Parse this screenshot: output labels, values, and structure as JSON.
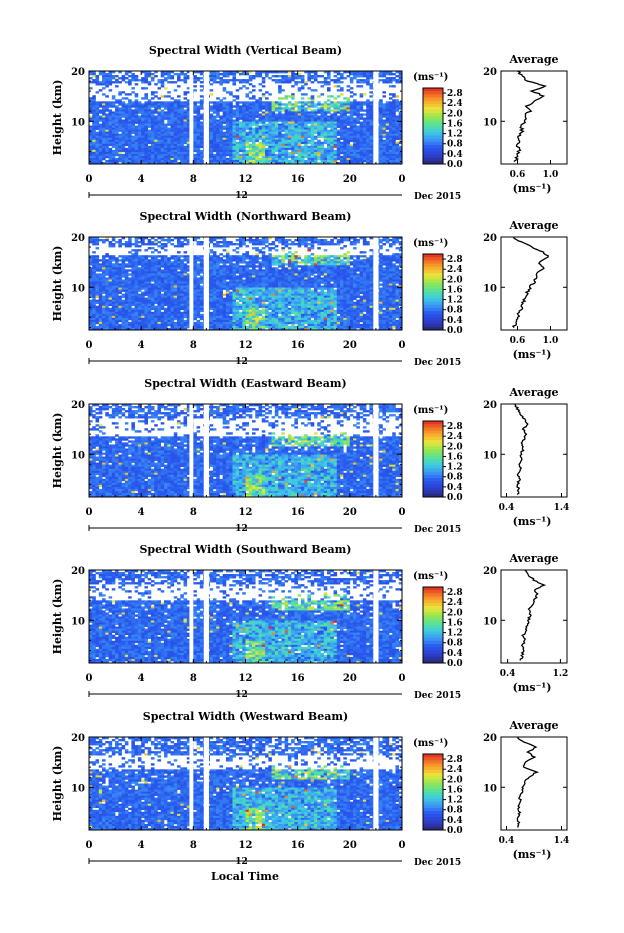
{
  "figure": {
    "xlabel": "Local Time",
    "date_label": "Dec 2015",
    "date_tick": "12",
    "ylabel": "Height (km)",
    "cbar_unit": "(ms⁻¹)",
    "avg_title": "Average",
    "avg_xlabel": "(ms⁻¹)"
  },
  "chart_data": [
    {
      "type": "heatmap",
      "title": "Spectral Width (Vertical Beam)",
      "x_ticks": [
        "0",
        "4",
        "8",
        "12",
        "16",
        "20",
        "0"
      ],
      "y_ticks": [
        "20",
        "10"
      ],
      "xlim": [
        0,
        24
      ],
      "ylim": [
        1.5,
        20
      ],
      "colorbar": {
        "ticks": [
          "2.8",
          "2.4",
          "2.0",
          "1.6",
          "1.2",
          "0.8",
          "0.4",
          "0.0"
        ],
        "range": [
          0,
          3.0
        ]
      },
      "gaps_hours": [
        [
          7.7,
          8.0
        ],
        [
          8.8,
          9.2
        ],
        [
          21.8,
          22.2
        ]
      ],
      "upper_white_band_km": [
        14,
        17.5
      ],
      "average_profile": {
        "x_ticks": [
          "0.6",
          "1.0"
        ],
        "xlim": [
          0.4,
          1.2
        ],
        "ylim": [
          1.5,
          20
        ],
        "points": [
          [
            0.57,
            2
          ],
          [
            0.6,
            3
          ],
          [
            0.62,
            4
          ],
          [
            0.6,
            5
          ],
          [
            0.63,
            6
          ],
          [
            0.62,
            7
          ],
          [
            0.66,
            8
          ],
          [
            0.64,
            9
          ],
          [
            0.7,
            10
          ],
          [
            0.68,
            11
          ],
          [
            0.75,
            12
          ],
          [
            0.7,
            13
          ],
          [
            0.82,
            14
          ],
          [
            0.92,
            15
          ],
          [
            0.78,
            16
          ],
          [
            0.95,
            17
          ],
          [
            0.72,
            18
          ],
          [
            0.66,
            19
          ],
          [
            0.6,
            20
          ]
        ]
      }
    },
    {
      "type": "heatmap",
      "title": "Spectral Width (Northward Beam)",
      "x_ticks": [
        "0",
        "4",
        "8",
        "12",
        "16",
        "20",
        "0"
      ],
      "y_ticks": [
        "20",
        "10"
      ],
      "xlim": [
        0,
        24
      ],
      "ylim": [
        1.5,
        20
      ],
      "colorbar": {
        "ticks": [
          "2.8",
          "2.4",
          "2.0",
          "1.6",
          "1.2",
          "0.8",
          "0.4",
          "0.0"
        ],
        "range": [
          0,
          3.0
        ]
      },
      "gaps_hours": [
        [
          7.7,
          8.0
        ],
        [
          8.8,
          9.2
        ],
        [
          21.8,
          22.2
        ]
      ],
      "upper_white_band_km": [
        16.5,
        18.5
      ],
      "average_profile": {
        "x_ticks": [
          "0.6",
          "1.0"
        ],
        "xlim": [
          0.4,
          1.2
        ],
        "ylim": [
          1.5,
          20
        ],
        "points": [
          [
            0.55,
            2
          ],
          [
            0.58,
            3
          ],
          [
            0.6,
            4
          ],
          [
            0.62,
            5
          ],
          [
            0.65,
            6
          ],
          [
            0.67,
            7
          ],
          [
            0.7,
            8
          ],
          [
            0.72,
            9
          ],
          [
            0.75,
            10
          ],
          [
            0.8,
            11
          ],
          [
            0.82,
            12
          ],
          [
            0.86,
            13
          ],
          [
            0.92,
            14
          ],
          [
            0.85,
            15
          ],
          [
            0.98,
            16
          ],
          [
            0.9,
            17
          ],
          [
            0.78,
            18
          ],
          [
            0.65,
            19
          ],
          [
            0.55,
            20
          ]
        ]
      }
    },
    {
      "type": "heatmap",
      "title": "Spectral Width (Eastward Beam)",
      "x_ticks": [
        "0",
        "4",
        "8",
        "12",
        "16",
        "20",
        "0"
      ],
      "y_ticks": [
        "20",
        "10"
      ],
      "xlim": [
        0,
        24
      ],
      "ylim": [
        1.5,
        20
      ],
      "colorbar": {
        "ticks": [
          "2.8",
          "2.4",
          "2.0",
          "1.6",
          "1.2",
          "0.8",
          "0.4",
          "0.0"
        ],
        "range": [
          0,
          3.0
        ]
      },
      "gaps_hours": [
        [
          7.7,
          8.0
        ],
        [
          8.8,
          9.2
        ],
        [
          21.8,
          22.2
        ]
      ],
      "upper_white_band_km": [
        13.5,
        17
      ],
      "average_profile": {
        "x_ticks": [
          "0.4",
          "1.4"
        ],
        "xlim": [
          0.3,
          1.5
        ],
        "ylim": [
          1.5,
          20
        ],
        "points": [
          [
            0.6,
            2
          ],
          [
            0.62,
            3
          ],
          [
            0.6,
            4
          ],
          [
            0.64,
            5
          ],
          [
            0.62,
            6
          ],
          [
            0.66,
            7
          ],
          [
            0.64,
            8
          ],
          [
            0.68,
            9
          ],
          [
            0.66,
            10
          ],
          [
            0.7,
            11
          ],
          [
            0.68,
            12
          ],
          [
            0.72,
            13
          ],
          [
            0.75,
            14
          ],
          [
            0.7,
            15
          ],
          [
            0.8,
            16
          ],
          [
            0.72,
            17
          ],
          [
            0.66,
            18
          ],
          [
            0.6,
            19
          ],
          [
            0.55,
            20
          ]
        ]
      }
    },
    {
      "type": "heatmap",
      "title": "Spectral Width (Southward Beam)",
      "x_ticks": [
        "0",
        "4",
        "8",
        "12",
        "16",
        "20",
        "0"
      ],
      "y_ticks": [
        "20",
        "10"
      ],
      "xlim": [
        0,
        24
      ],
      "ylim": [
        1.5,
        20
      ],
      "colorbar": {
        "ticks": [
          "2.8",
          "2.4",
          "2.0",
          "1.6",
          "1.2",
          "0.8",
          "0.4",
          "0.0"
        ],
        "range": [
          0,
          3.0
        ]
      },
      "gaps_hours": [
        [
          7.7,
          8.0
        ],
        [
          8.8,
          9.2
        ],
        [
          21.8,
          22.2
        ]
      ],
      "upper_white_band_km": [
        14,
        17
      ],
      "average_profile": {
        "x_ticks": [
          "0.4",
          "1.2"
        ],
        "xlim": [
          0.3,
          1.3
        ],
        "ylim": [
          1.5,
          20
        ],
        "points": [
          [
            0.6,
            2
          ],
          [
            0.62,
            3
          ],
          [
            0.64,
            4
          ],
          [
            0.62,
            5
          ],
          [
            0.66,
            6
          ],
          [
            0.64,
            7
          ],
          [
            0.68,
            8
          ],
          [
            0.7,
            9
          ],
          [
            0.72,
            10
          ],
          [
            0.74,
            11
          ],
          [
            0.72,
            12
          ],
          [
            0.78,
            13
          ],
          [
            0.8,
            14
          ],
          [
            0.85,
            15
          ],
          [
            0.8,
            16
          ],
          [
            0.95,
            17
          ],
          [
            0.8,
            18
          ],
          [
            0.72,
            19
          ],
          [
            0.66,
            20
          ]
        ]
      }
    },
    {
      "type": "heatmap",
      "title": "Spectral Width (Westward Beam)",
      "x_ticks": [
        "0",
        "4",
        "8",
        "12",
        "16",
        "20",
        "0"
      ],
      "y_ticks": [
        "20",
        "10"
      ],
      "xlim": [
        0,
        24
      ],
      "ylim": [
        1.5,
        20
      ],
      "colorbar": {
        "ticks": [
          "2.8",
          "2.4",
          "2.0",
          "1.6",
          "1.2",
          "0.8",
          "0.4",
          "0.0"
        ],
        "range": [
          0,
          3.0
        ]
      },
      "gaps_hours": [
        [
          7.7,
          8.0
        ],
        [
          8.8,
          9.2
        ],
        [
          21.8,
          22.2
        ]
      ],
      "upper_white_band_km": [
        13.5,
        16.5
      ],
      "average_profile": {
        "x_ticks": [
          "0.4",
          "1.4"
        ],
        "xlim": [
          0.3,
          1.5
        ],
        "ylim": [
          1.5,
          20
        ],
        "points": [
          [
            0.6,
            2
          ],
          [
            0.62,
            3
          ],
          [
            0.6,
            4
          ],
          [
            0.64,
            5
          ],
          [
            0.62,
            6
          ],
          [
            0.66,
            7
          ],
          [
            0.64,
            8
          ],
          [
            0.68,
            9
          ],
          [
            0.7,
            10
          ],
          [
            0.74,
            11
          ],
          [
            0.8,
            12
          ],
          [
            0.95,
            13
          ],
          [
            0.7,
            14
          ],
          [
            0.75,
            15
          ],
          [
            0.9,
            16
          ],
          [
            0.8,
            17
          ],
          [
            0.95,
            18
          ],
          [
            0.7,
            19
          ],
          [
            0.6,
            20
          ]
        ]
      }
    }
  ]
}
